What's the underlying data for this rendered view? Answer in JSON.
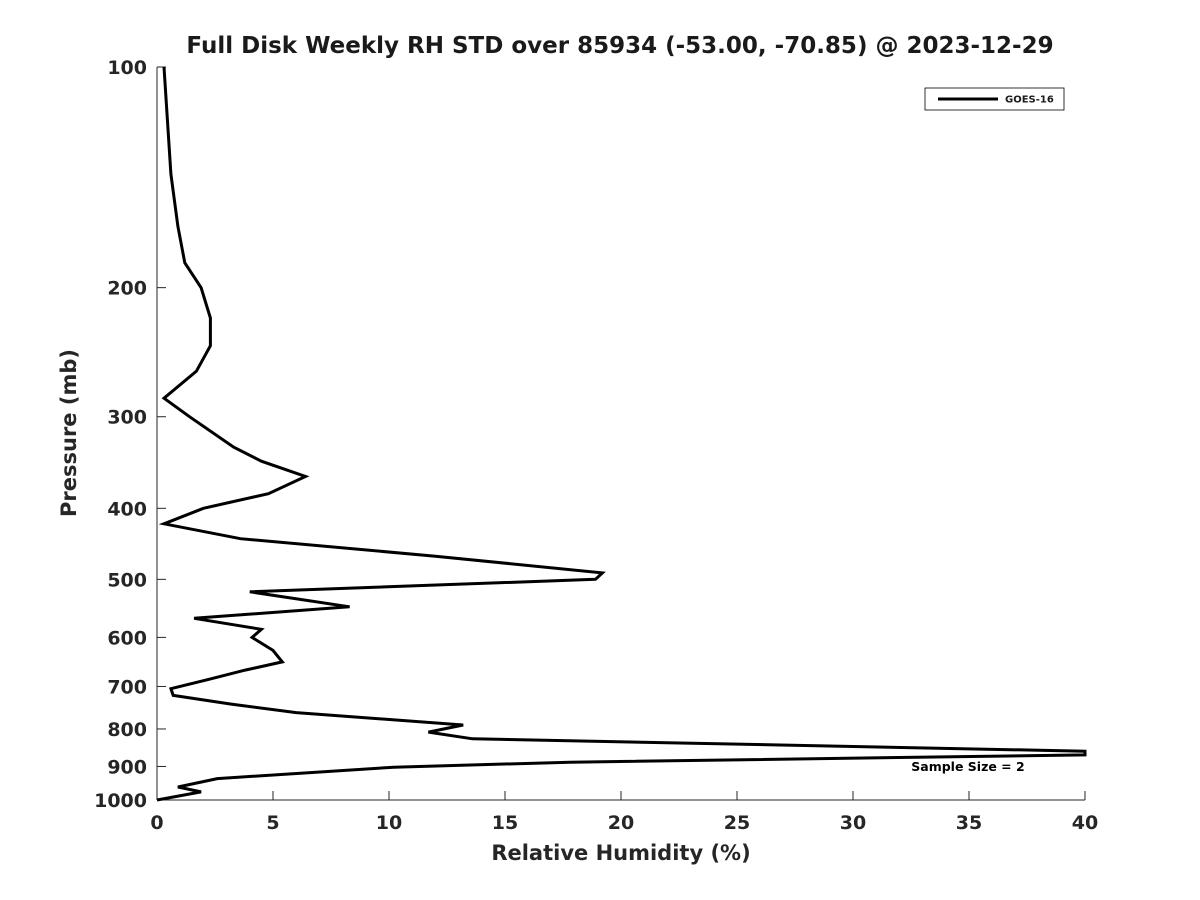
{
  "chart_data": {
    "type": "line",
    "title": "Full Disk Weekly RH STD over 85934 (-53.00, -70.85) @ 2023-12-29",
    "xlabel": "Relative Humidity (%)",
    "ylabel": "Pressure (mb)",
    "xlim": [
      0,
      40
    ],
    "ylim": [
      100,
      1000
    ],
    "y_scale": "log",
    "y_reversed": true,
    "x_ticks": [
      0,
      5,
      10,
      15,
      20,
      25,
      30,
      35,
      40
    ],
    "y_ticks": [
      100,
      200,
      300,
      400,
      500,
      600,
      700,
      800,
      900,
      1000
    ],
    "grid": false,
    "legend_position": "top-right",
    "annotation": "Sample Size = 2",
    "series": [
      {
        "name": "GOES-16",
        "color": "#000000",
        "points": [
          [
            0.3,
            100
          ],
          [
            0.6,
            140
          ],
          [
            0.9,
            165
          ],
          [
            1.2,
            185
          ],
          [
            1.9,
            200
          ],
          [
            2.3,
            220
          ],
          [
            2.3,
            240
          ],
          [
            1.7,
            260
          ],
          [
            0.3,
            283
          ],
          [
            1.4,
            300
          ],
          [
            3.3,
            330
          ],
          [
            4.5,
            345
          ],
          [
            6.4,
            362
          ],
          [
            4.8,
            382
          ],
          [
            2.0,
            400
          ],
          [
            0.3,
            420
          ],
          [
            3.6,
            440
          ],
          [
            12.0,
            465
          ],
          [
            19.2,
            490
          ],
          [
            18.9,
            500
          ],
          [
            4.0,
            520
          ],
          [
            8.3,
            545
          ],
          [
            1.6,
            565
          ],
          [
            4.5,
            585
          ],
          [
            4.1,
            600
          ],
          [
            5.0,
            625
          ],
          [
            5.4,
            648
          ],
          [
            3.8,
            665
          ],
          [
            2.2,
            685
          ],
          [
            0.6,
            705
          ],
          [
            0.7,
            720
          ],
          [
            3.2,
            740
          ],
          [
            6.0,
            760
          ],
          [
            13.2,
            790
          ],
          [
            11.7,
            808
          ],
          [
            13.6,
            825
          ],
          [
            40.0,
            858
          ],
          [
            40.0,
            868
          ],
          [
            17.8,
            888
          ],
          [
            10.2,
            902
          ],
          [
            2.6,
            935
          ],
          [
            0.9,
            960
          ],
          [
            1.9,
            975
          ],
          [
            0.0,
            1000
          ]
        ]
      }
    ]
  }
}
